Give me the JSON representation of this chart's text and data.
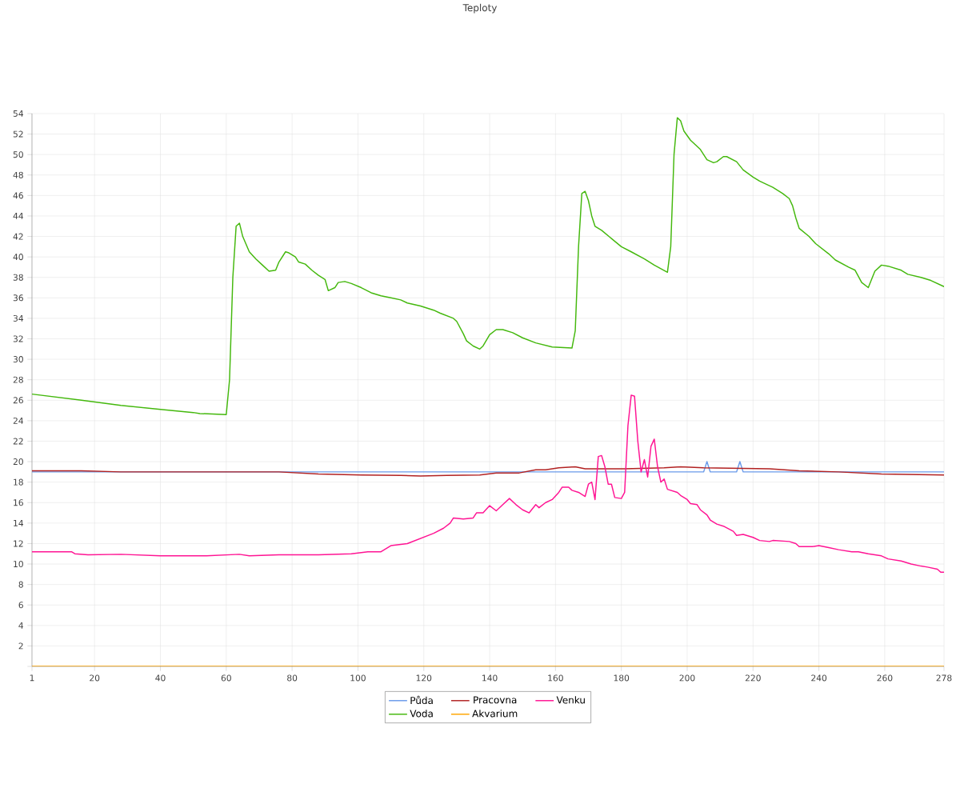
{
  "chart_data": {
    "type": "line",
    "title": "Teploty",
    "xlim": [
      1,
      278
    ],
    "xticks": [
      1,
      20,
      40,
      60,
      80,
      100,
      120,
      140,
      160,
      180,
      200,
      220,
      240,
      260,
      278
    ],
    "ylim": [
      0,
      54
    ],
    "yticks": [
      {
        "value": 0,
        "label": null
      },
      2,
      4,
      6,
      8,
      10,
      12,
      14,
      16,
      18,
      20,
      22,
      24,
      26,
      28,
      30,
      32,
      34,
      36,
      38,
      40,
      42,
      44,
      46,
      48,
      50,
      52,
      54
    ],
    "grid": true,
    "legend": "bottom",
    "line_style": "solid",
    "series": [
      {
        "name": "Půda",
        "color": "#6a9bea",
        "x": [
          1,
          205,
          206,
          207,
          215,
          216,
          217,
          278
        ],
        "values": [
          19.0,
          19.0,
          20.0,
          19.0,
          19.0,
          20.0,
          19.0,
          19.0
        ]
      },
      {
        "name": "Voda",
        "color": "#44b80d",
        "x": [
          1,
          16,
          28,
          40,
          50,
          52,
          60,
          61,
          62,
          63,
          64,
          65,
          67,
          69,
          71,
          73,
          75,
          76,
          78,
          79,
          81,
          82,
          84,
          86,
          88,
          90,
          91,
          93,
          94,
          96,
          98,
          101,
          104,
          107,
          110,
          113,
          115,
          119,
          123,
          125,
          129,
          130,
          132,
          133,
          135,
          137,
          138,
          140,
          142,
          144,
          147,
          150,
          154,
          159,
          165,
          166,
          167,
          168,
          169,
          170,
          171,
          172,
          174,
          177,
          180,
          183,
          187,
          190,
          194,
          195,
          196,
          197,
          198,
          199,
          201,
          204,
          206,
          208,
          209,
          211,
          212,
          215,
          217,
          220,
          222,
          226,
          229,
          231,
          232,
          233,
          234,
          237,
          239,
          243,
          245,
          249,
          251,
          253,
          255,
          257,
          259,
          261,
          265,
          267,
          271,
          274,
          278
        ],
        "values": [
          26.6,
          26.0,
          25.5,
          25.1,
          24.8,
          24.7,
          24.6,
          28.0,
          38.0,
          43.0,
          43.3,
          42.0,
          40.5,
          39.8,
          39.2,
          38.6,
          38.7,
          39.5,
          40.5,
          40.4,
          40.0,
          39.5,
          39.3,
          38.7,
          38.2,
          37.8,
          36.7,
          37.0,
          37.5,
          37.6,
          37.4,
          37.0,
          36.5,
          36.2,
          36.0,
          35.8,
          35.5,
          35.2,
          34.8,
          34.5,
          34.0,
          33.7,
          32.5,
          31.8,
          31.3,
          31.0,
          31.3,
          32.4,
          32.9,
          32.9,
          32.6,
          32.1,
          31.6,
          31.2,
          31.1,
          32.8,
          41.0,
          46.2,
          46.4,
          45.5,
          44.0,
          43.0,
          42.6,
          41.8,
          41.0,
          40.5,
          39.8,
          39.2,
          38.5,
          41.0,
          50.0,
          53.6,
          53.3,
          52.3,
          51.4,
          50.5,
          49.5,
          49.2,
          49.3,
          49.8,
          49.8,
          49.3,
          48.5,
          47.8,
          47.4,
          46.8,
          46.2,
          45.7,
          45.0,
          43.8,
          42.8,
          42.0,
          41.3,
          40.3,
          39.7,
          39.0,
          38.7,
          37.5,
          37.0,
          38.6,
          39.2,
          39.1,
          38.7,
          38.3,
          38.0,
          37.7,
          37.1
        ]
      },
      {
        "name": "Pracovna",
        "color": "#b22222",
        "x": [
          1,
          16,
          28,
          76,
          88,
          101,
          113,
          119,
          127,
          137,
          142,
          149,
          154,
          157,
          161,
          166,
          169,
          181,
          193,
          198,
          205,
          225,
          234,
          246,
          259,
          278
        ],
        "values": [
          19.1,
          19.1,
          19.0,
          19.0,
          18.8,
          18.7,
          18.65,
          18.6,
          18.65,
          18.7,
          18.9,
          18.9,
          19.2,
          19.2,
          19.4,
          19.5,
          19.3,
          19.3,
          19.4,
          19.5,
          19.4,
          19.3,
          19.1,
          19.0,
          18.8,
          18.7
        ]
      },
      {
        "name": "Akvarium",
        "color": "#ffa500",
        "x": [
          1,
          278
        ],
        "values": [
          0,
          0
        ]
      },
      {
        "name": "Venku",
        "color": "#ff1493",
        "x": [
          1,
          13,
          14,
          18,
          28,
          40,
          54,
          64,
          67,
          76,
          88,
          98,
          103,
          107,
          110,
          115,
          119,
          123,
          126,
          128,
          129,
          132,
          135,
          136,
          138,
          140,
          142,
          144,
          146,
          148,
          150,
          152,
          154,
          155,
          157,
          159,
          161,
          162,
          164,
          165,
          167,
          169,
          170,
          171,
          172,
          173,
          174,
          175,
          176,
          177,
          178,
          180,
          181,
          182,
          183,
          184,
          185,
          186,
          187,
          188,
          189,
          190,
          191,
          192,
          193,
          194,
          197,
          198,
          200,
          201,
          203,
          204,
          206,
          207,
          209,
          211,
          214,
          215,
          217,
          220,
          222,
          225,
          226,
          231,
          233,
          234,
          238,
          240,
          243,
          246,
          250,
          252,
          255,
          259,
          261,
          265,
          268,
          271,
          273,
          276,
          277,
          278
        ],
        "values": [
          11.2,
          11.2,
          11.0,
          10.9,
          10.95,
          10.8,
          10.8,
          10.95,
          10.8,
          10.9,
          10.9,
          11.0,
          11.2,
          11.2,
          11.8,
          12.0,
          12.5,
          13.0,
          13.5,
          14.0,
          14.5,
          14.4,
          14.5,
          15.0,
          15.0,
          15.7,
          15.2,
          15.8,
          16.4,
          15.8,
          15.3,
          15.0,
          15.8,
          15.5,
          16.0,
          16.3,
          17.0,
          17.5,
          17.5,
          17.2,
          17.0,
          16.6,
          17.8,
          18.0,
          16.3,
          20.5,
          20.6,
          19.5,
          17.8,
          17.8,
          16.5,
          16.4,
          17.0,
          23.5,
          26.5,
          26.4,
          22.0,
          19.0,
          20.2,
          18.5,
          21.5,
          22.2,
          19.5,
          18.0,
          18.3,
          17.3,
          17.0,
          16.7,
          16.3,
          15.9,
          15.8,
          15.3,
          14.8,
          14.3,
          13.9,
          13.7,
          13.2,
          12.8,
          12.9,
          12.6,
          12.3,
          12.2,
          12.3,
          12.2,
          12.0,
          11.7,
          11.7,
          11.8,
          11.6,
          11.4,
          11.2,
          11.2,
          11.0,
          10.8,
          10.5,
          10.3,
          10.0,
          9.8,
          9.7,
          9.5,
          9.2,
          9.2
        ]
      }
    ]
  }
}
